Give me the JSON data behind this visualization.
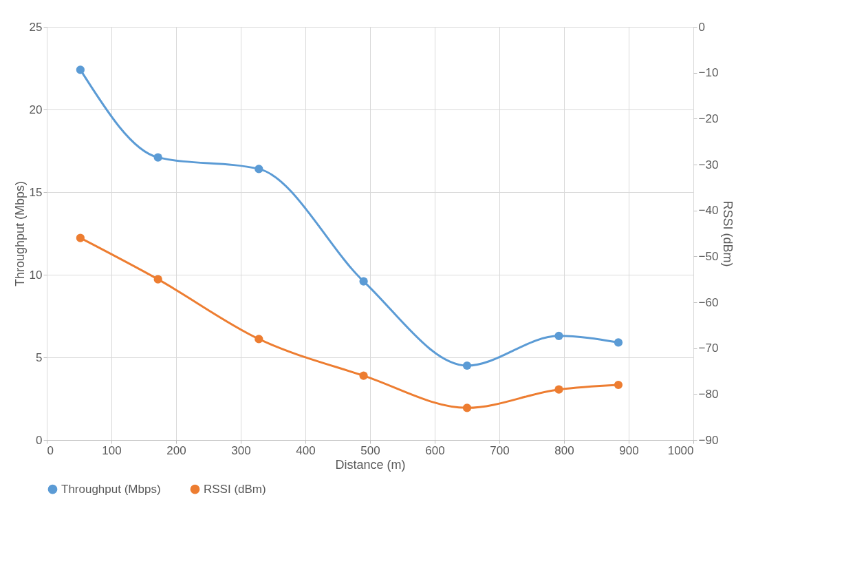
{
  "chart_data": {
    "type": "line",
    "xlabel": "Distance (m)",
    "ylabel": "Throughput (Mbps)",
    "y2label": "RSSI (dBm)",
    "xlim": [
      0,
      1000
    ],
    "xticks": [
      0,
      100,
      200,
      300,
      400,
      500,
      600,
      700,
      800,
      900,
      1000
    ],
    "ylim": [
      0,
      25
    ],
    "yticks": [
      0,
      5,
      10,
      15,
      20,
      25
    ],
    "y2lim": [
      -90,
      0
    ],
    "y2ticks": [
      -90,
      -80,
      -70,
      -60,
      -50,
      -40,
      -30,
      -20,
      -10,
      0
    ],
    "x": [
      52,
      172,
      328,
      490,
      650,
      792,
      884
    ],
    "series": [
      {
        "name": "Throughput (Mbps)",
        "color": "#5b9bd5",
        "values": [
          22.4,
          17.1,
          16.4,
          9.6,
          4.5,
          6.3,
          5.9
        ]
      },
      {
        "name": "RSSI (dBm)",
        "color": "#ed7d31",
        "axis": "y2",
        "values": [
          -46,
          -55,
          -68,
          -76,
          -83,
          -79,
          -78
        ]
      }
    ],
    "grid": true,
    "legend": "bottom",
    "marker": "circle",
    "line_style": "solid"
  }
}
